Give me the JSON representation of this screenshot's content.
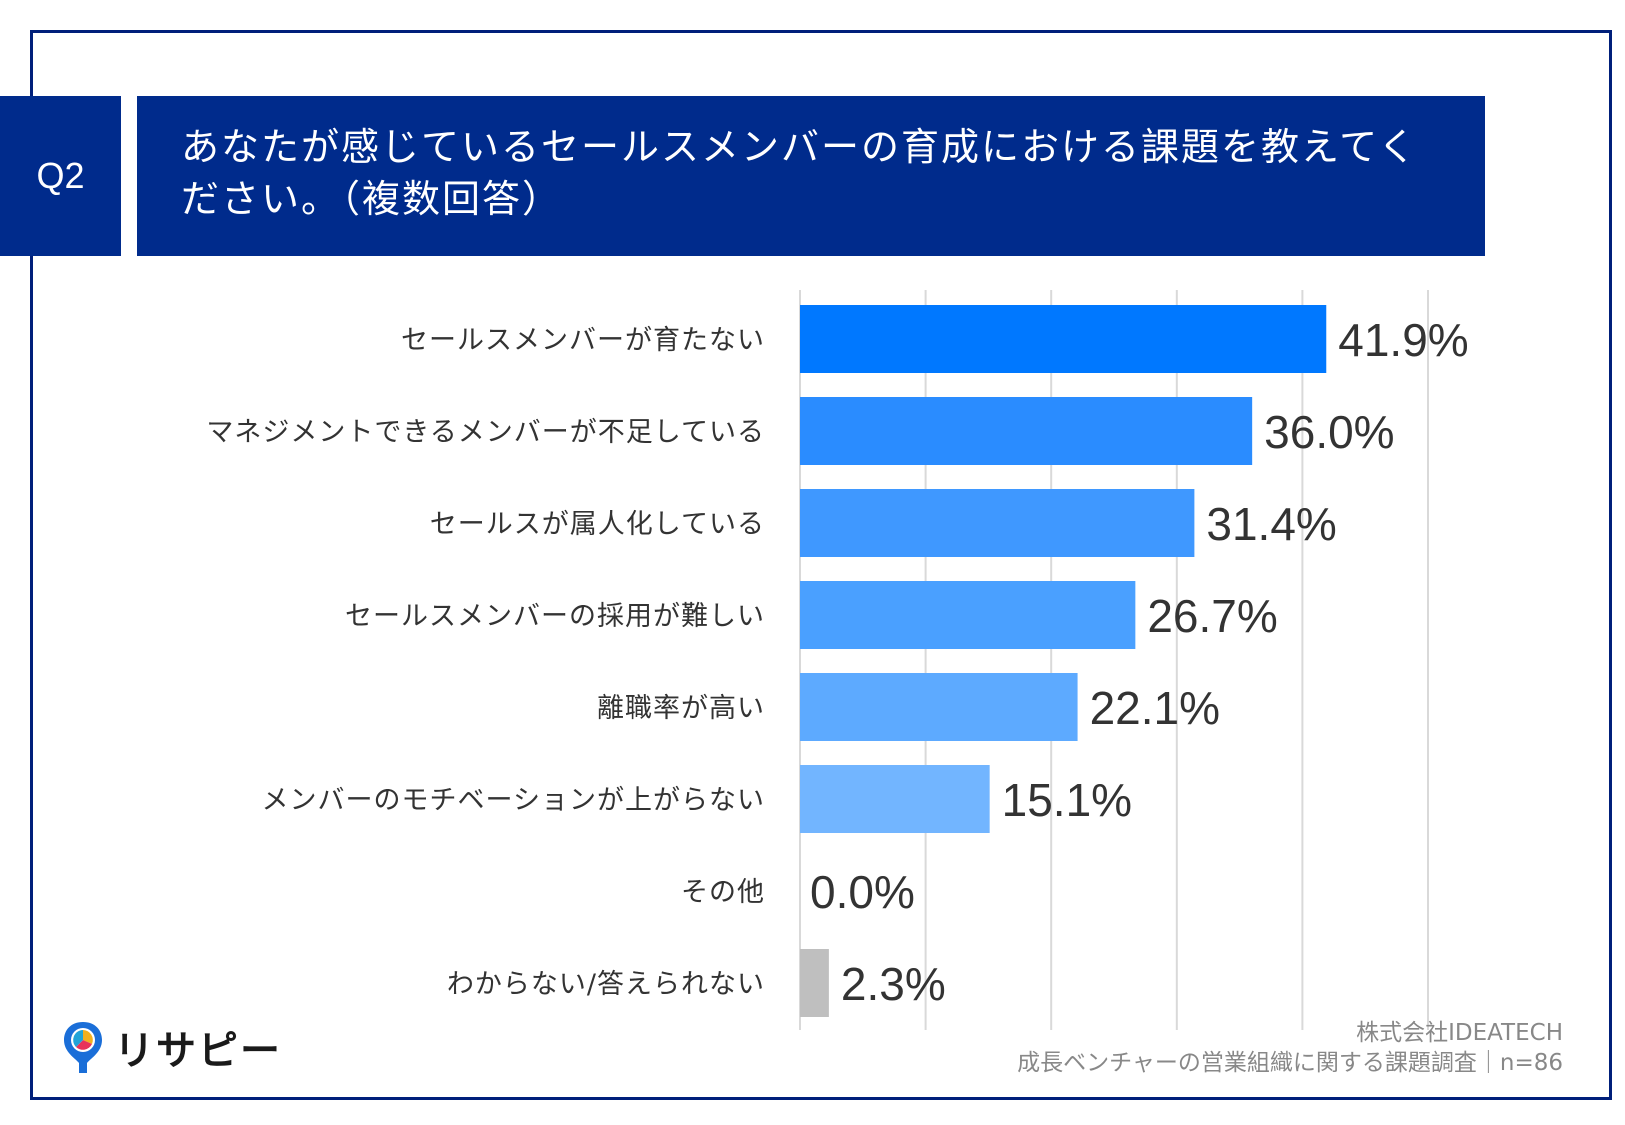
{
  "question": {
    "number": "Q2",
    "title": "あなたが感じているセールスメンバーの育成における課題を教えてください。（複数回答）"
  },
  "chart_data": {
    "type": "bar",
    "orientation": "horizontal",
    "categories": [
      "セールスメンバーが育たない",
      "マネジメントできるメンバーが不足している",
      "セールスが属人化している",
      "セールスメンバーの採用が難しい",
      "離職率が高い",
      "メンバーのモチベーションが上がらない",
      "その他",
      "わからない/答えられない"
    ],
    "values": [
      41.9,
      36.0,
      31.4,
      26.7,
      22.1,
      15.1,
      0.0,
      2.3
    ],
    "value_labels": [
      "41.9%",
      "36.0%",
      "31.4%",
      "26.7%",
      "22.1%",
      "15.1%",
      "0.0%",
      "2.3%"
    ],
    "colors": [
      "#0078ff",
      "#2a8cff",
      "#3f98ff",
      "#4aa0ff",
      "#5daaff",
      "#72b5ff",
      "#86c0ff",
      "#bfbfbf"
    ],
    "xlim": [
      0,
      50
    ],
    "gridlines": [
      10,
      20,
      30,
      40,
      50
    ],
    "grid": true,
    "legend": "none"
  },
  "footer": {
    "logo_text": "リサピー",
    "source_company": "株式会社IDEATECH",
    "source_survey": "成長ベンチャーの営業組織に関する課題調査｜n=86"
  }
}
